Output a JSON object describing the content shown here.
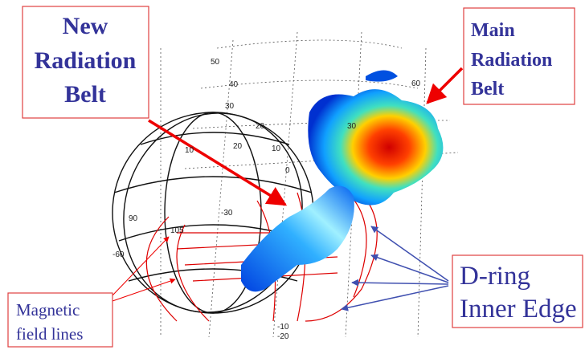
{
  "new_belt_label": {
    "lines": [
      "New",
      "Radiation",
      "Belt"
    ]
  },
  "main_belt_label": {
    "lines": [
      "Main",
      "Radiation",
      "Belt"
    ]
  },
  "d_ring_label": {
    "lines": [
      "D-ring",
      "Inner Edge"
    ]
  },
  "field_lines_label": {
    "lines": [
      "Magnetic",
      "field lines"
    ]
  },
  "grid_labels": [
    "50",
    "40",
    "30",
    "60",
    "20",
    "10",
    "0",
    "30",
    "20",
    "10",
    "-30",
    "90",
    "105",
    "-60",
    "-10",
    "-20"
  ]
}
